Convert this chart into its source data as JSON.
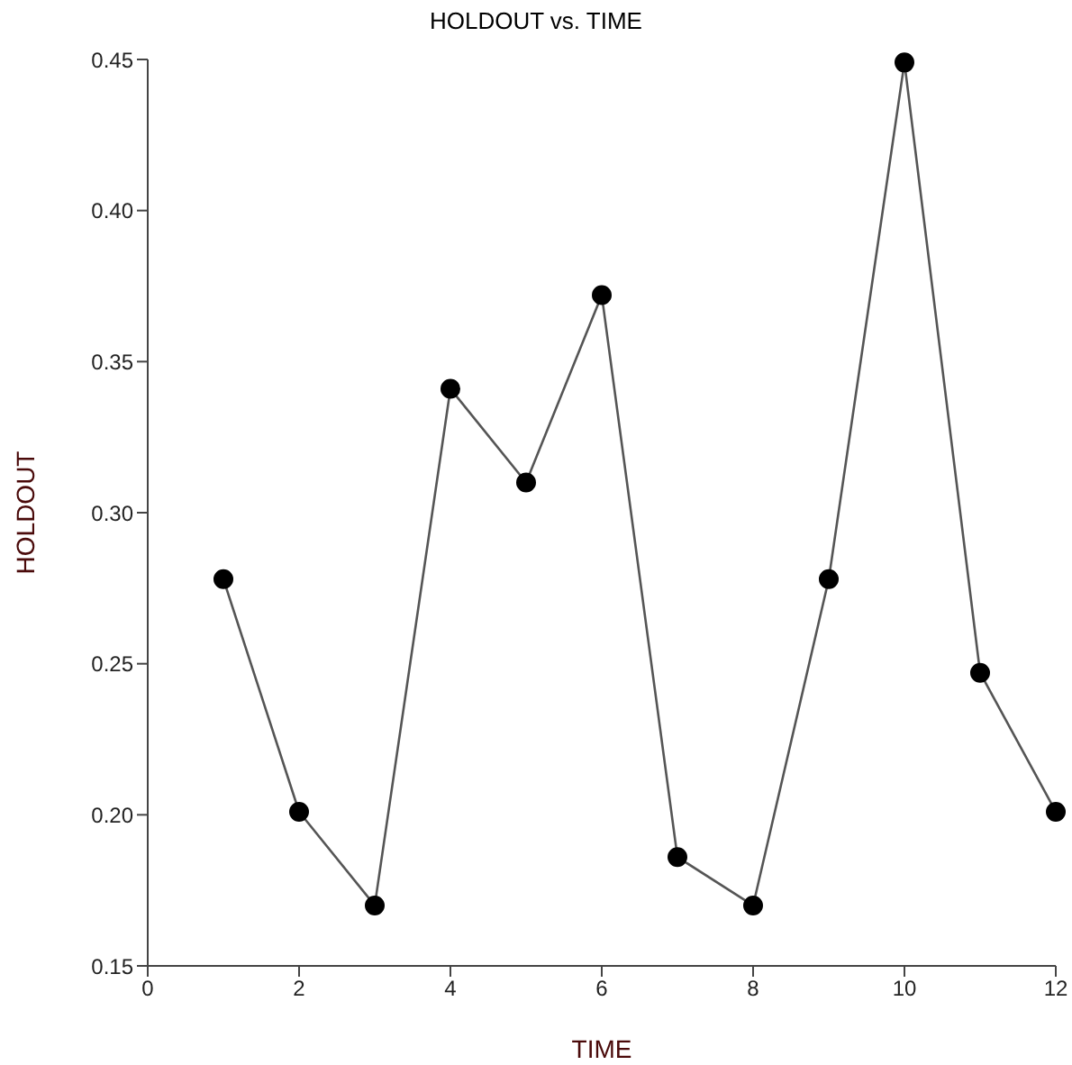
{
  "chart_data": {
    "type": "line",
    "title": "HOLDOUT vs. TIME",
    "xlabel": "TIME",
    "ylabel": "HOLDOUT",
    "x": [
      1,
      2,
      3,
      4,
      5,
      6,
      7,
      8,
      9,
      10,
      11,
      12
    ],
    "series": [
      {
        "color": "#555555",
        "values": [
          0.278,
          0.201,
          0.17,
          0.341,
          0.31,
          0.372,
          0.186,
          0.17,
          0.278,
          0.449,
          0.247,
          0.201
        ]
      }
    ],
    "xlim": [
      0,
      12
    ],
    "xticks": [
      0,
      2,
      4,
      6,
      8,
      10,
      12
    ],
    "ylim": [
      0.15,
      0.45
    ],
    "yticks": [
      0.15,
      {
        "value": 0.2,
        "label": "0.20"
      },
      0.25,
      {
        "value": 0.3,
        "label": "0.30"
      },
      0.35,
      {
        "value": 0.4,
        "label": "0.40"
      },
      0.45
    ],
    "marker": "circle",
    "grid": false,
    "legend": false
  }
}
